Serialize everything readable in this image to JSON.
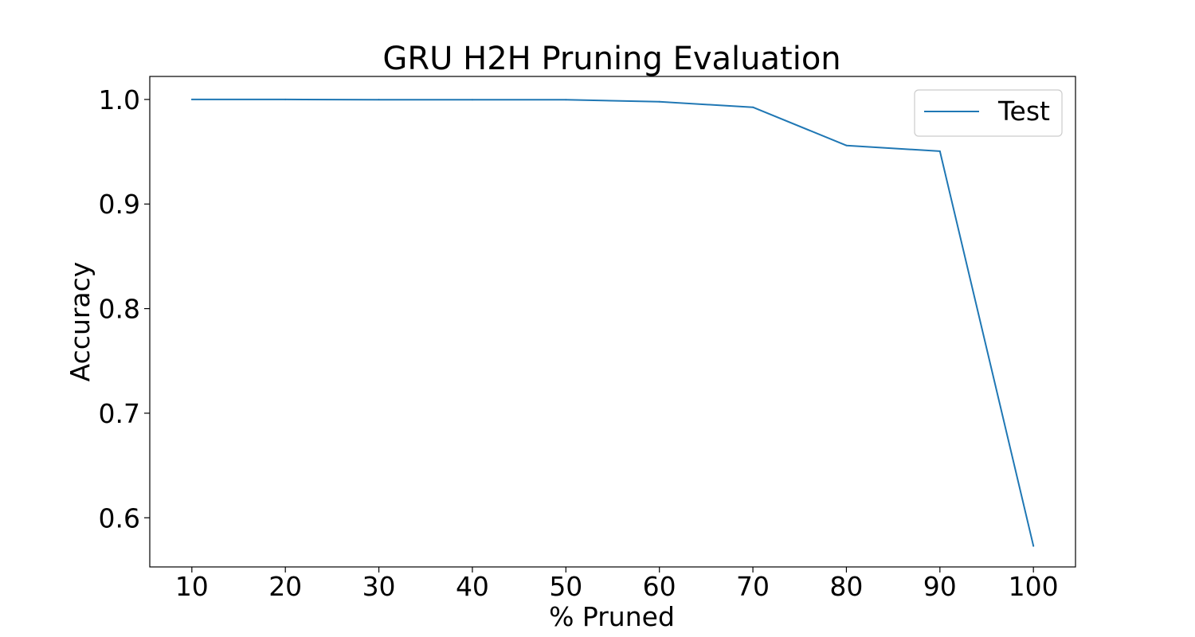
{
  "chart_data": {
    "type": "line",
    "title": "GRU H2H Pruning Evaluation",
    "xlabel": "% Pruned",
    "ylabel": "Accuracy",
    "x": [
      10,
      20,
      30,
      40,
      50,
      60,
      70,
      80,
      90,
      100
    ],
    "x_ticks": [
      "10",
      "20",
      "30",
      "40",
      "50",
      "60",
      "70",
      "80",
      "90",
      "100"
    ],
    "y_ticks": [
      "0.6",
      "0.7",
      "0.8",
      "0.9",
      "1.0"
    ],
    "xlim": [
      5.5,
      104.5
    ],
    "ylim": [
      0.553,
      1.022
    ],
    "grid": false,
    "legend_position": "upper-right",
    "series": [
      {
        "name": "Test",
        "color": "#1f77b4",
        "values": [
          1.0,
          1.0,
          0.9998,
          0.9997,
          0.9997,
          0.9978,
          0.9925,
          0.956,
          0.9505,
          0.573
        ]
      }
    ]
  }
}
